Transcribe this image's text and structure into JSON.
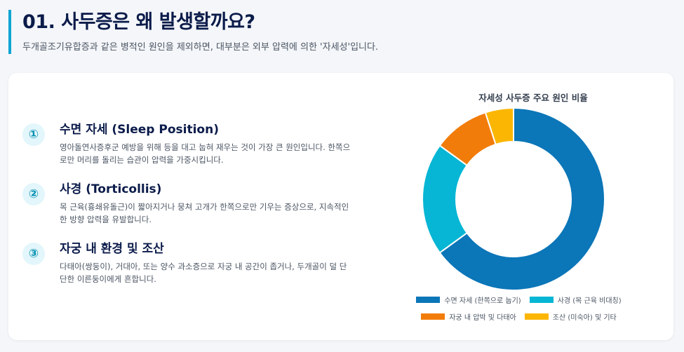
{
  "header": {
    "title": "01. 사두증은 왜 발생할까요?",
    "subtitle": "두개골조기유합증과 같은 병적인 원인을 제외하면, 대부분은 외부 압력에 의한 '자세성'입니다."
  },
  "causes": [
    {
      "number": "①",
      "title": "수면 자세 (Sleep Position)",
      "desc": "영아돌연사증후군 예방을 위해 등을 대고 눕혀 재우는 것이 가장 큰 원인입니다. 한쪽으로만 머리를 돌리는 습관이 압력을 가중시킵니다."
    },
    {
      "number": "②",
      "title": "사경 (Torticollis)",
      "desc": "목 근육(흉쇄유돌근)이 짧아지거나 뭉쳐 고개가 한쪽으로만 기우는 증상으로, 지속적인 한 방향 압력을 유발합니다."
    },
    {
      "number": "③",
      "title": "자궁 내 환경 및 조산",
      "desc": "다태아(쌍둥이), 거대아, 또는 양수 과소증으로 자궁 내 공간이 좁거나, 두개골이 덜 단단한 이른둥이에게 흔합니다."
    }
  ],
  "chart_data": {
    "type": "pie",
    "title": "자세성 사두증 주요 원인 비율",
    "labels": [
      "수면 자세 (한쪽으로 눕기)",
      "사경 (목 근육 비대칭)",
      "자궁 내 압박 및 다태아",
      "조산 (미숙아) 및 기타"
    ],
    "values": [
      65,
      20,
      10,
      5
    ],
    "colors": [
      "#0b76b8",
      "#06b6d4",
      "#f27c0a",
      "#fbb603"
    ],
    "donut": true,
    "legend": "bottom"
  }
}
